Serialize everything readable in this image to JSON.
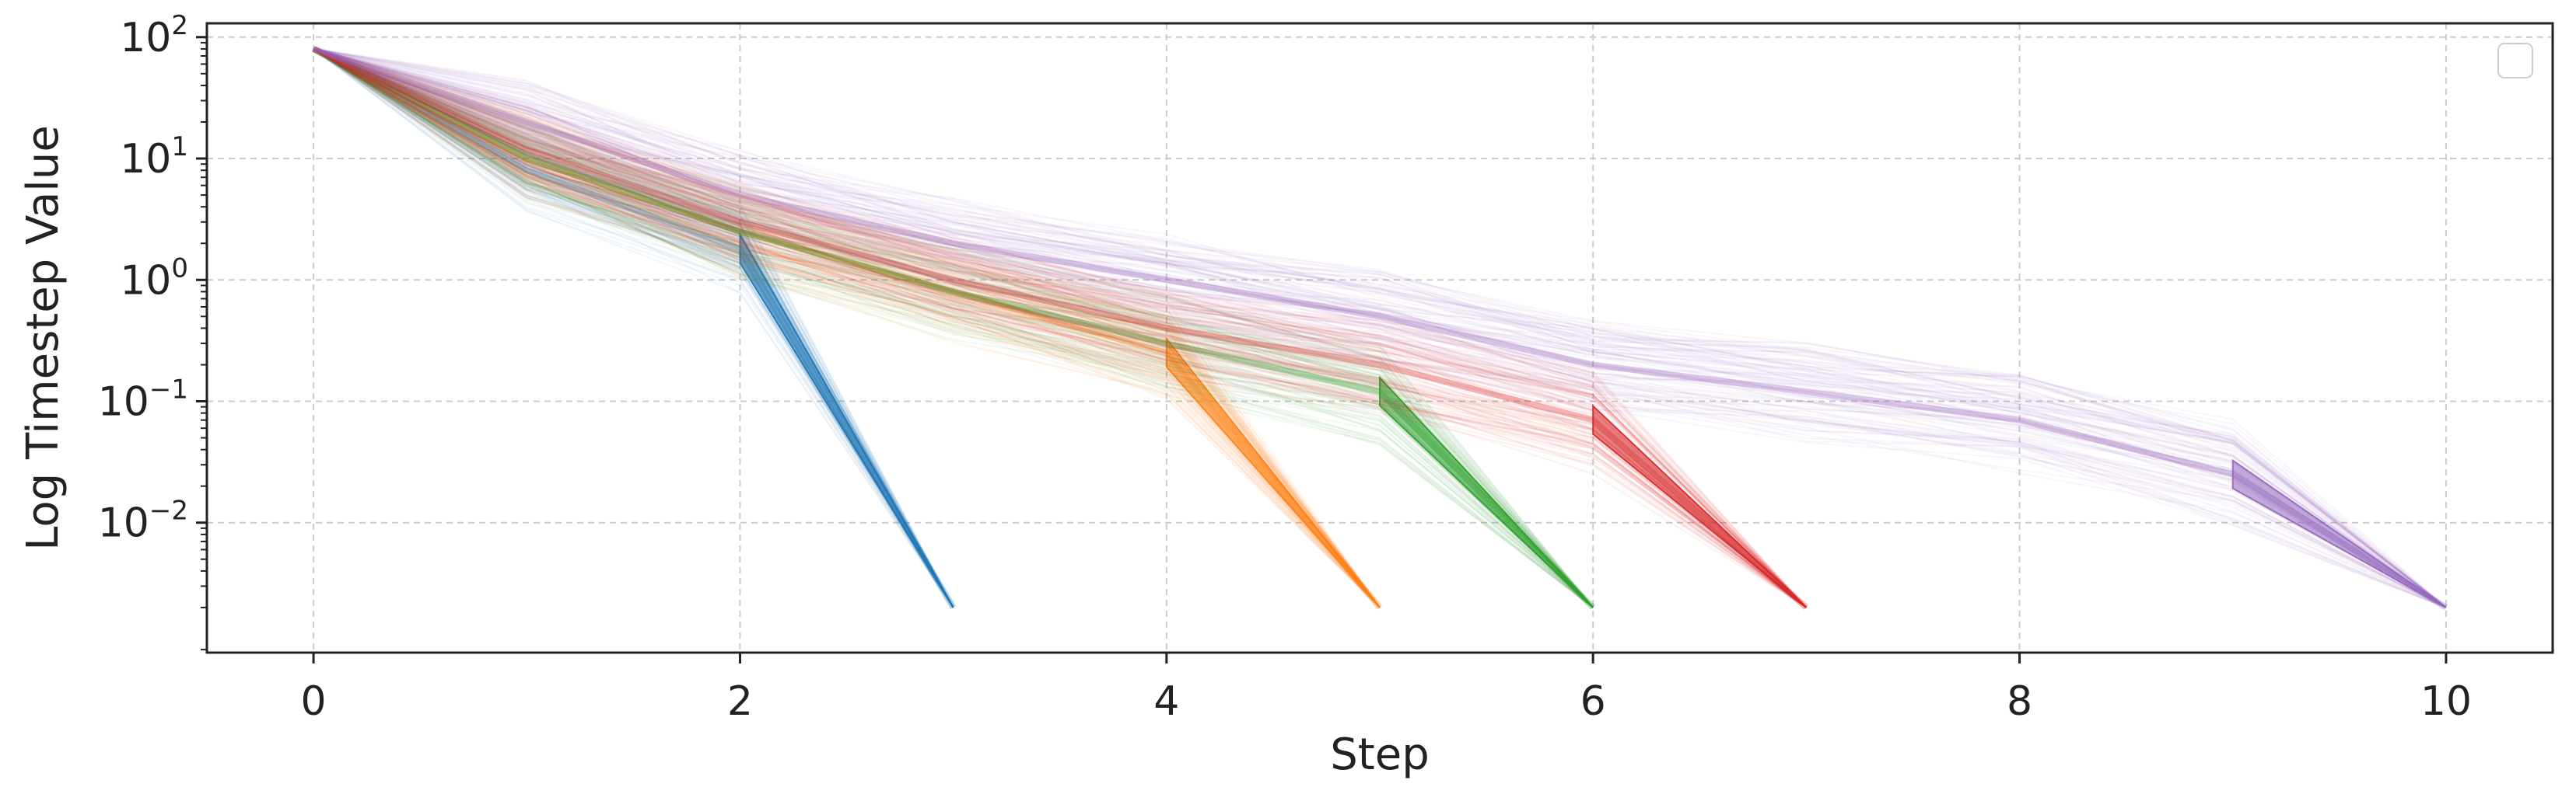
{
  "chart_data": {
    "type": "line",
    "title": "",
    "xlabel": "Step",
    "ylabel": "Log Timestep Value",
    "xlim": [
      -0.5,
      10.5
    ],
    "ylim": [
      0.00085,
      130
    ],
    "yscale": "log",
    "grid": true,
    "legend": "top-right, empty",
    "x_ticks": [
      0,
      2,
      4,
      6,
      8,
      10
    ],
    "x_tick_labels": [
      "0",
      "2",
      "4",
      "6",
      "8",
      "10"
    ],
    "y_ticks": [
      {
        "value": 100,
        "base": "10",
        "exp": "2"
      },
      {
        "value": 10,
        "base": "10",
        "exp": "1"
      },
      {
        "value": 1,
        "base": "10",
        "exp": "0"
      },
      {
        "value": 0.1,
        "base": "10",
        "exp": "−1"
      },
      {
        "value": 0.01,
        "base": "10",
        "exp": "−2"
      }
    ],
    "series": [
      {
        "color": "#1f77b4",
        "steps": 3,
        "median": [
          [
            0,
            80
          ],
          [
            1,
            8
          ],
          [
            2,
            1.8
          ],
          [
            3,
            0.002
          ]
        ]
      },
      {
        "color": "#ff7f0e",
        "steps": 5,
        "median": [
          [
            0,
            80
          ],
          [
            1,
            10
          ],
          [
            2,
            2.5
          ],
          [
            3,
            0.8
          ],
          [
            4,
            0.25
          ],
          [
            5,
            0.002
          ]
        ]
      },
      {
        "color": "#2ca02c",
        "steps": 6,
        "median": [
          [
            0,
            80
          ],
          [
            1,
            10
          ],
          [
            2,
            2.5
          ],
          [
            3,
            0.8
          ],
          [
            4,
            0.3
          ],
          [
            5,
            0.12
          ],
          [
            6,
            0.002
          ]
        ]
      },
      {
        "color": "#d62728",
        "steps": 7,
        "median": [
          [
            0,
            80
          ],
          [
            1,
            12
          ],
          [
            2,
            3
          ],
          [
            3,
            1.0
          ],
          [
            4,
            0.4
          ],
          [
            5,
            0.2
          ],
          [
            6,
            0.07
          ],
          [
            7,
            0.002
          ]
        ]
      },
      {
        "color": "#9467bd",
        "steps": 10,
        "median": [
          [
            0,
            80
          ],
          [
            1,
            20
          ],
          [
            2,
            5
          ],
          [
            3,
            2
          ],
          [
            4,
            1.0
          ],
          [
            5,
            0.5
          ],
          [
            6,
            0.2
          ],
          [
            7,
            0.12
          ],
          [
            8,
            0.07
          ],
          [
            9,
            0.025
          ],
          [
            10,
            0.002
          ]
        ]
      }
    ]
  }
}
